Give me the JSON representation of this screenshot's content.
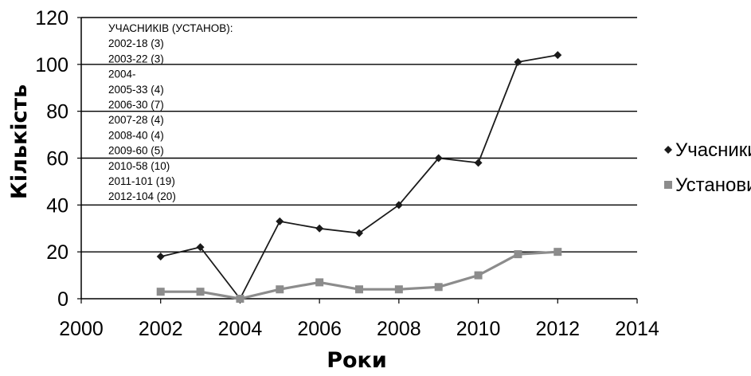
{
  "chart_data": {
    "type": "line",
    "xlabel": "Роки",
    "ylabel": "Кількість",
    "xlim": [
      2000,
      2014
    ],
    "ylim": [
      0,
      120
    ],
    "xticks": [
      2000,
      2002,
      2004,
      2006,
      2008,
      2010,
      2012,
      2014
    ],
    "yticks": [
      0,
      20,
      40,
      60,
      80,
      100,
      120
    ],
    "grid": "horizontal",
    "legend_position": "right",
    "x": [
      2002,
      2003,
      2004,
      2005,
      2006,
      2007,
      2008,
      2009,
      2010,
      2011,
      2012
    ],
    "series": [
      {
        "name": "Учасники",
        "marker": "diamond",
        "color": "#1a1a1a",
        "values": [
          18,
          22,
          0,
          33,
          30,
          28,
          40,
          60,
          58,
          101,
          104
        ]
      },
      {
        "name": "Установи",
        "marker": "square",
        "color": "#8c8c8c",
        "values": [
          3,
          3,
          0,
          4,
          7,
          4,
          4,
          5,
          10,
          19,
          20
        ]
      }
    ],
    "annotation": {
      "title": "УЧАСНИКІВ (УСТАНОВ):",
      "lines": [
        "2002-18 (3)",
        "2003-22 (3)",
        "2004-",
        "2005-33 (4)",
        "2006-30 (7)",
        "2007-28 (4)",
        "2008-40 (4)",
        "2009-60 (5)",
        "2010-58 (10)",
        "2011-101 (19)",
        "2012-104 (20)"
      ]
    }
  }
}
